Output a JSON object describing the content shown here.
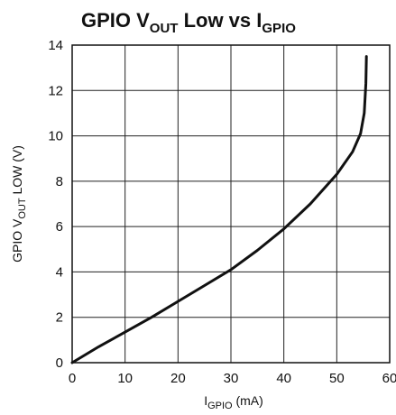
{
  "chart_data": {
    "type": "line",
    "title": {
      "main": "GPIO V",
      "sub1": "OUT",
      "mid": " Low vs I",
      "sub2": "GPIO"
    },
    "xlabel": {
      "main": "I",
      "sub": "GPIO",
      "rest": " (mA)"
    },
    "ylabel": {
      "main": "GPIO V",
      "sub": "OUT",
      "rest": " LOW (V)"
    },
    "xlim": [
      0,
      60
    ],
    "ylim": [
      0,
      14
    ],
    "xticks": [
      "0",
      "10",
      "20",
      "30",
      "40",
      "50",
      "60"
    ],
    "yticks": [
      "0",
      "2",
      "4",
      "6",
      "8",
      "10",
      "12",
      "14"
    ],
    "grid": true,
    "series": [
      {
        "color": "#111111",
        "x": [
          0,
          5,
          10,
          15,
          20,
          25,
          30,
          35,
          40,
          45,
          50,
          53,
          54.5,
          55.2,
          55.5,
          55.6
        ],
        "y": [
          0,
          0.7,
          1.35,
          2.0,
          2.7,
          3.4,
          4.1,
          4.95,
          5.9,
          7.0,
          8.3,
          9.3,
          10.1,
          11.0,
          12.3,
          13.5
        ]
      }
    ]
  }
}
